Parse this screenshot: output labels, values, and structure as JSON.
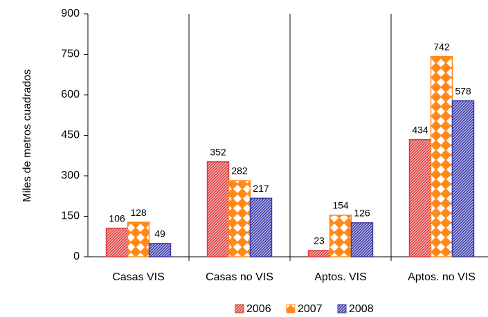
{
  "chart_data": {
    "type": "bar",
    "y_label": "Miles de metros cuadrados",
    "categories": [
      "Casas VIS",
      "Casas no VIS",
      "Aptos. VIS",
      "Aptos. no VIS"
    ],
    "series": [
      {
        "name": "2006",
        "color": "#e03c3c",
        "values": [
          106,
          352,
          23,
          434
        ]
      },
      {
        "name": "2007",
        "color": "#ff8a1c",
        "values": [
          128,
          282,
          154,
          742
        ]
      },
      {
        "name": "2008",
        "color": "#3c3ca8",
        "values": [
          49,
          217,
          126,
          578
        ]
      }
    ],
    "ylim": [
      0,
      900
    ],
    "yticks": [
      0,
      150,
      300,
      450,
      600,
      750,
      900
    ],
    "legend": "bottom"
  }
}
